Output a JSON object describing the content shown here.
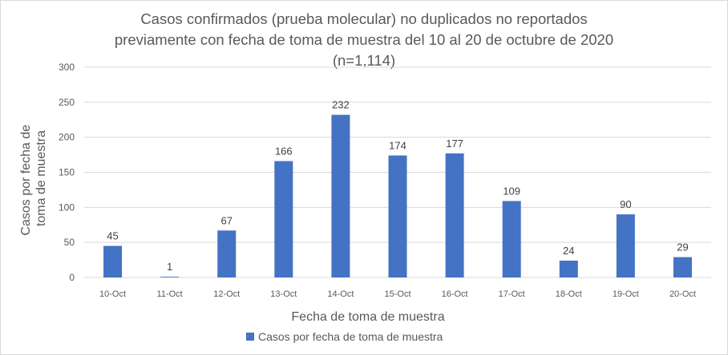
{
  "chart_data": {
    "type": "bar",
    "title": [
      "Casos confirmados (prueba molecular) no duplicados no reportados",
      "previamente con fecha de toma de muestra del 10 al 20 de octubre de 2020",
      "(n=1,114)"
    ],
    "xlabel": "Fecha de toma de muestra",
    "ylabel": [
      "Casos por fecha de",
      "toma de muestra"
    ],
    "categories": [
      "10-Oct",
      "11-Oct",
      "12-Oct",
      "13-Oct",
      "14-Oct",
      "15-Oct",
      "16-Oct",
      "17-Oct",
      "18-Oct",
      "19-Oct",
      "20-Oct"
    ],
    "series": [
      {
        "name": "Casos por fecha de toma de muestra",
        "values": [
          45,
          1,
          67,
          166,
          232,
          174,
          177,
          109,
          24,
          90,
          29
        ],
        "color": "#4472c4"
      }
    ],
    "ylim": [
      0,
      300
    ],
    "yticks": [
      0,
      50,
      100,
      150,
      200,
      250,
      300
    ],
    "grid": true,
    "legend_position": "bottom"
  }
}
